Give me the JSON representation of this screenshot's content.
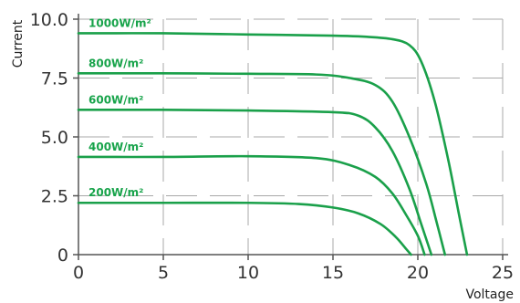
{
  "chart_data": {
    "type": "line",
    "title": "",
    "xlabel": "Voltage",
    "ylabel": "Current",
    "xlim": [
      0,
      25
    ],
    "ylim": [
      0,
      10
    ],
    "x_ticks": [
      "0",
      "5",
      "10",
      "15",
      "20",
      "25"
    ],
    "y_ticks": [
      "0",
      "2.5",
      "5.0",
      "7.5",
      "10.0"
    ],
    "grid": true,
    "colors": {
      "series": "#1aa04a",
      "label": "#17a34a"
    },
    "series": [
      {
        "name": "1000W/m²",
        "x": [
          0,
          5,
          10,
          15,
          17,
          18.5,
          19.5,
          20.2,
          21,
          21.8,
          22.4,
          22.9
        ],
        "y": [
          9.4,
          9.4,
          9.35,
          9.3,
          9.25,
          9.15,
          8.9,
          8.2,
          6.5,
          4.0,
          1.8,
          0
        ]
      },
      {
        "name": "800W/m²",
        "x": [
          0,
          5,
          10,
          14,
          16,
          17.5,
          18.5,
          19.5,
          20.5,
          21.1,
          21.6
        ],
        "y": [
          7.7,
          7.7,
          7.68,
          7.65,
          7.5,
          7.2,
          6.5,
          5.0,
          3.0,
          1.4,
          0
        ]
      },
      {
        "name": "600W/m²",
        "x": [
          0,
          5,
          10,
          15,
          16.5,
          17.5,
          18.5,
          19.5,
          20.2,
          20.8
        ],
        "y": [
          6.15,
          6.15,
          6.12,
          6.05,
          5.9,
          5.4,
          4.4,
          2.8,
          1.3,
          0
        ]
      },
      {
        "name": "400W/m²",
        "x": [
          0,
          5,
          10,
          14,
          16,
          17.5,
          18.5,
          19.3,
          20.0,
          20.4
        ],
        "y": [
          4.15,
          4.15,
          4.18,
          4.1,
          3.8,
          3.3,
          2.6,
          1.7,
          0.8,
          0
        ]
      },
      {
        "name": "200W/m²",
        "x": [
          0,
          5,
          10,
          13,
          15,
          16.5,
          17.8,
          18.7,
          19.3,
          19.6
        ],
        "y": [
          2.2,
          2.2,
          2.2,
          2.15,
          2.0,
          1.75,
          1.3,
          0.75,
          0.25,
          0
        ]
      }
    ]
  }
}
